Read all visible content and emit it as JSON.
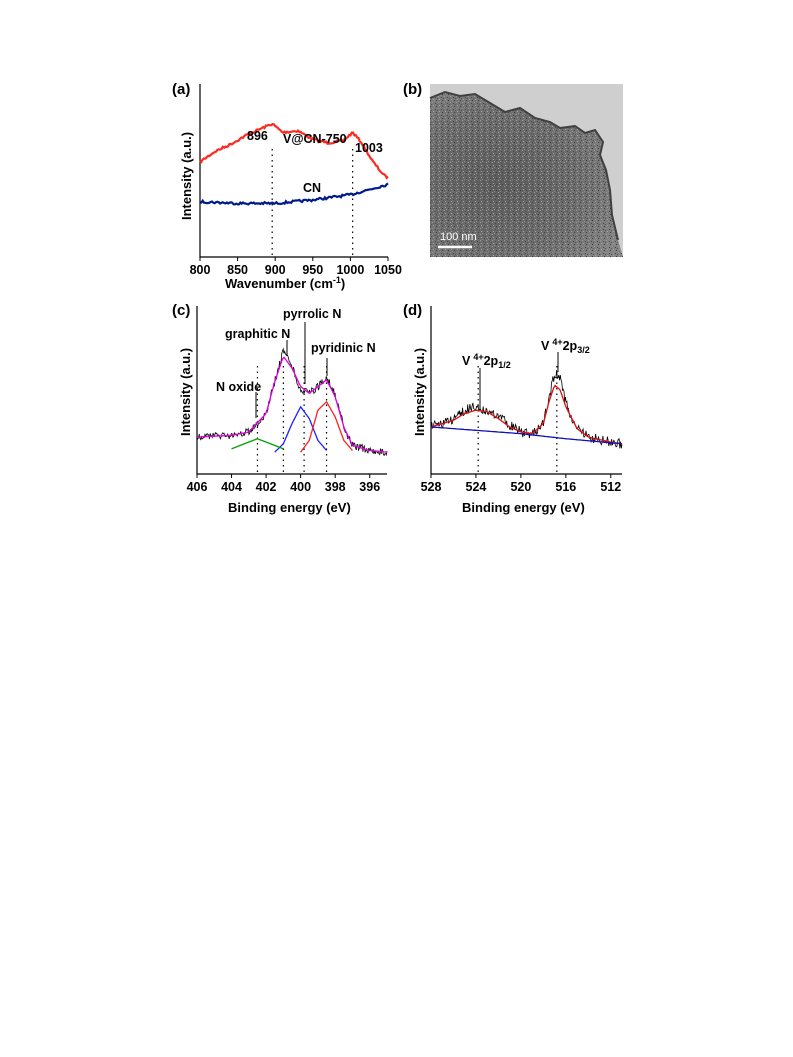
{
  "panels": {
    "a": "(a)",
    "b": "(b)",
    "c": "(c)",
    "d": "(d)"
  },
  "chart_data": [
    {
      "panel": "a",
      "type": "line",
      "xlabel": "Wavenumber (cm",
      "xlabel_sup": "-1",
      "xlabel_close": ")",
      "ylabel": "Intensity (a.u.)",
      "xlim": [
        800,
        1050
      ],
      "ylim": [
        0,
        1
      ],
      "xticks": [
        800,
        850,
        900,
        950,
        1000,
        1050
      ],
      "annotations": [
        "896",
        "1003"
      ],
      "marker_x": [
        896,
        1003
      ],
      "series": [
        {
          "name": "V@CN-750",
          "color": "#ff2a1f",
          "x": [
            800,
            820,
            840,
            860,
            880,
            896,
            910,
            930,
            950,
            970,
            990,
            1003,
            1015,
            1030,
            1045,
            1050
          ],
          "y": [
            0.55,
            0.61,
            0.65,
            0.7,
            0.74,
            0.77,
            0.72,
            0.73,
            0.68,
            0.66,
            0.67,
            0.72,
            0.66,
            0.55,
            0.47,
            0.46
          ]
        },
        {
          "name": "CN",
          "color": "#001a8c",
          "x": [
            800,
            850,
            900,
            950,
            1000,
            1050
          ],
          "y": [
            0.32,
            0.31,
            0.31,
            0.33,
            0.36,
            0.42
          ]
        }
      ]
    },
    {
      "panel": "b",
      "type": "image",
      "scale_bar": "100 nm"
    },
    {
      "panel": "c",
      "type": "line",
      "xlabel": "Binding energy (eV)",
      "ylabel": "Intensity (a.u.)",
      "xlim": [
        406,
        395
      ],
      "ylim": [
        0,
        1
      ],
      "xticks": [
        406,
        404,
        402,
        400,
        398,
        396
      ],
      "annotations": [
        "graphitic N",
        "pyrrolic N",
        "pyridinic N",
        "N oxide"
      ],
      "marker_x": [
        402.5,
        401.0,
        399.8,
        398.5
      ],
      "series": [
        {
          "name": "",
          "color": "#000000",
          "x": [
            406,
            404,
            403,
            402,
            401.5,
            401,
            400.5,
            400,
            399.5,
            399,
            398.5,
            398,
            397.5,
            397,
            396,
            395
          ],
          "y": [
            0.22,
            0.23,
            0.25,
            0.36,
            0.55,
            0.73,
            0.64,
            0.5,
            0.48,
            0.52,
            0.58,
            0.47,
            0.28,
            0.17,
            0.14,
            0.13
          ]
        },
        {
          "name": "",
          "color": "#e000e0",
          "x": [
            406,
            404,
            403,
            402,
            401.5,
            401,
            400.5,
            400,
            399.5,
            399,
            398.5,
            398,
            397.5,
            397,
            396,
            395
          ],
          "y": [
            0.22,
            0.23,
            0.25,
            0.36,
            0.55,
            0.7,
            0.63,
            0.52,
            0.48,
            0.52,
            0.56,
            0.46,
            0.28,
            0.17,
            0.14,
            0.13
          ]
        },
        {
          "name": "",
          "color": "#2020ff",
          "x": [
            401.5,
            401,
            400.5,
            400,
            399.5,
            399,
            398.5
          ],
          "y": [
            0.13,
            0.18,
            0.3,
            0.4,
            0.33,
            0.2,
            0.14
          ]
        },
        {
          "name": "",
          "color": "#ff2020",
          "x": [
            400,
            399.5,
            399,
            398.5,
            398,
            397.5,
            397
          ],
          "y": [
            0.13,
            0.2,
            0.38,
            0.43,
            0.34,
            0.2,
            0.14
          ]
        },
        {
          "name": "",
          "color": "#00a000",
          "x": [
            404,
            403,
            402.5,
            402,
            401
          ],
          "y": [
            0.15,
            0.19,
            0.21,
            0.19,
            0.15
          ]
        }
      ]
    },
    {
      "panel": "d",
      "type": "line",
      "xlabel": "Binding energy (eV)",
      "ylabel": "Intensity (a.u.)",
      "xlim": [
        528,
        511
      ],
      "ylim": [
        0,
        1
      ],
      "xticks": [
        528,
        524,
        520,
        516,
        512
      ],
      "annotations": [
        "V",
        "4+",
        "2p",
        "1/2",
        "V",
        "4+",
        "2p",
        "3/2"
      ],
      "marker_x": [
        523.8,
        516.8
      ],
      "series": [
        {
          "name": "",
          "color": "#000000",
          "x": [
            528,
            526,
            525,
            524,
            523,
            522,
            521,
            520,
            519,
            518,
            517.5,
            517,
            516.5,
            516,
            515,
            514,
            512,
            511
          ],
          "y": [
            0.28,
            0.32,
            0.38,
            0.4,
            0.38,
            0.34,
            0.29,
            0.25,
            0.24,
            0.3,
            0.45,
            0.6,
            0.57,
            0.42,
            0.27,
            0.22,
            0.19,
            0.18
          ]
        },
        {
          "name": "",
          "color": "#e01010",
          "x": [
            528,
            526,
            525,
            524,
            523,
            522,
            521,
            520,
            519,
            518,
            517.5,
            517,
            516.5,
            516,
            515,
            514,
            512,
            511
          ],
          "y": [
            0.28,
            0.32,
            0.36,
            0.38,
            0.37,
            0.33,
            0.28,
            0.25,
            0.24,
            0.3,
            0.43,
            0.53,
            0.5,
            0.4,
            0.27,
            0.22,
            0.19,
            0.18
          ]
        },
        {
          "name": "",
          "color": "#1010c0",
          "x": [
            528,
            520,
            516,
            511
          ],
          "y": [
            0.28,
            0.24,
            0.21,
            0.18
          ]
        }
      ]
    }
  ]
}
